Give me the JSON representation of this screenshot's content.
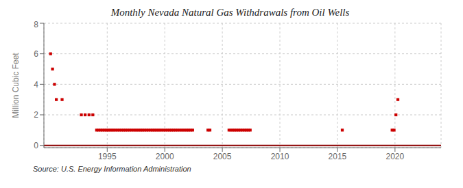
{
  "chart_data": {
    "type": "scatter",
    "title": "Monthly Nevada Natural Gas Withdrawals from Oil Wells",
    "ylabel": "Million Cubic Feet",
    "annotations": [
      "Source: U.S. Energy Information Administration"
    ],
    "xlim": [
      1989.5,
      2024.0
    ],
    "ylim": [
      -0.15,
      8
    ],
    "xticks": [
      1995,
      2000,
      2005,
      2010,
      2015,
      2020
    ],
    "yticks": [
      0,
      2,
      4,
      6,
      8
    ],
    "grid": true,
    "series": [
      {
        "type": "scatter",
        "color": "#cc0000",
        "marker": "square",
        "x": [
          1990.08,
          1990.25,
          1990.42,
          1990.58,
          1991.08,
          1992.75,
          1993.08,
          1993.42,
          1993.75,
          1994.08,
          1994.25,
          1994.42,
          1994.58,
          1994.75,
          1994.92,
          1995.08,
          1995.25,
          1995.42,
          1995.58,
          1995.75,
          1995.92,
          1996.08,
          1996.25,
          1996.42,
          1996.58,
          1996.75,
          1996.92,
          1997.08,
          1997.25,
          1997.42,
          1997.58,
          1997.75,
          1997.92,
          1998.08,
          1998.25,
          1998.42,
          1998.58,
          1998.75,
          1998.92,
          1999.08,
          1999.25,
          1999.42,
          1999.58,
          1999.75,
          1999.92,
          2000.08,
          2000.25,
          2000.42,
          2000.58,
          2000.75,
          2000.92,
          2001.08,
          2001.25,
          2001.42,
          2001.58,
          2001.75,
          2001.92,
          2002.08,
          2002.25,
          2002.42,
          2003.75,
          2003.92,
          2005.58,
          2005.75,
          2005.92,
          2006.08,
          2006.25,
          2006.42,
          2006.58,
          2006.75,
          2006.92,
          2007.08,
          2007.25,
          2007.42,
          2015.42,
          2019.75,
          2019.92,
          2020.08,
          2020.25
        ],
        "values": [
          6.0,
          5.0,
          4.0,
          3.0,
          3.0,
          2.0,
          2.0,
          2.0,
          2.0,
          1.0,
          1.0,
          1.0,
          1.0,
          1.0,
          1.0,
          1.0,
          1.0,
          1.0,
          1.0,
          1.0,
          1.0,
          1.0,
          1.0,
          1.0,
          1.0,
          1.0,
          1.0,
          1.0,
          1.0,
          1.0,
          1.0,
          1.0,
          1.0,
          1.0,
          1.0,
          1.0,
          1.0,
          1.0,
          1.0,
          1.0,
          1.0,
          1.0,
          1.0,
          1.0,
          1.0,
          1.0,
          1.0,
          1.0,
          1.0,
          1.0,
          1.0,
          1.0,
          1.0,
          1.0,
          1.0,
          1.0,
          1.0,
          1.0,
          1.0,
          1.0,
          1.0,
          1.0,
          1.0,
          1.0,
          1.0,
          1.0,
          1.0,
          1.0,
          1.0,
          1.0,
          1.0,
          1.0,
          1.0,
          1.0,
          1.0,
          1.0,
          1.0,
          2.0,
          3.0
        ]
      },
      {
        "type": "line",
        "color": "#8b0000",
        "line_style": "solid",
        "x": [
          1989.5,
          2024.0
        ],
        "values": [
          0,
          0
        ]
      }
    ]
  }
}
